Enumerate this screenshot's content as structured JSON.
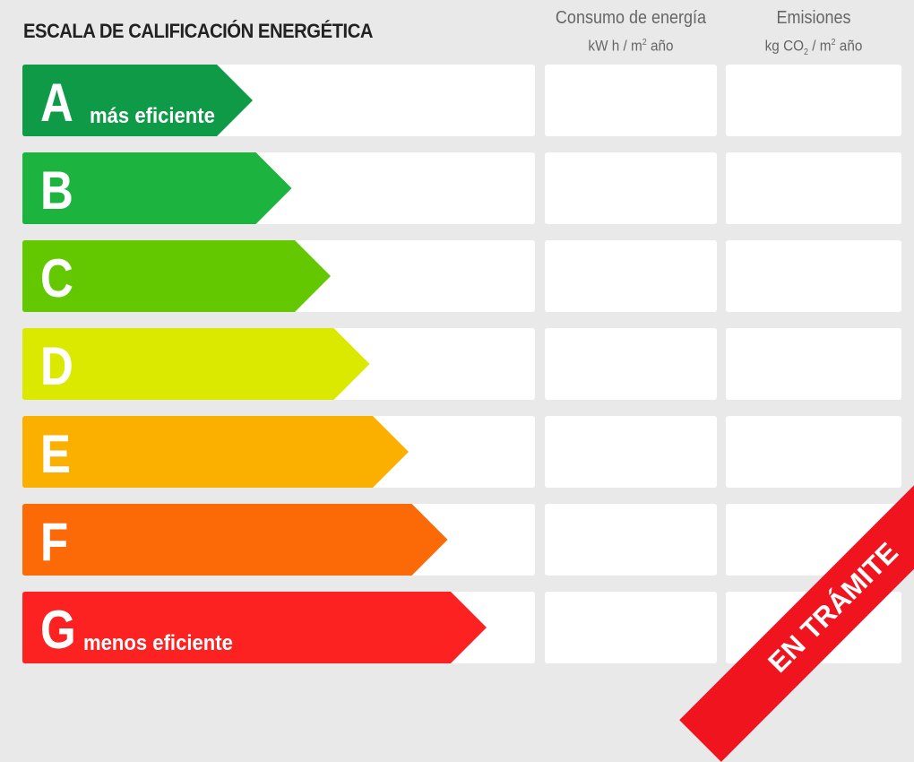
{
  "title": "ESCALA DE CALIFICACIÓN ENERGÉTICA",
  "columns": [
    {
      "label": "Consumo de energía",
      "unit_pre": "kW h / m",
      "unit_sup": "2",
      "unit_post": " año"
    },
    {
      "label": "Emisiones",
      "unit_pre": "kg CO",
      "unit_sub": "2",
      "unit_mid": " / m",
      "unit_sup": "2",
      "unit_post": " año"
    }
  ],
  "ratings": [
    {
      "letter": "A",
      "caption": "más eficiente",
      "color": "#0f9a48"
    },
    {
      "letter": "B",
      "color": "#1db33f"
    },
    {
      "letter": "C",
      "color": "#63c800"
    },
    {
      "letter": "D",
      "color": "#dbe800"
    },
    {
      "letter": "E",
      "color": "#fbb000"
    },
    {
      "letter": "F",
      "color": "#fc6a07"
    },
    {
      "letter": "G",
      "caption": "menos eficiente",
      "color": "#fc2222"
    }
  ],
  "banner": {
    "text": "EN TRÁMITE",
    "color": "#f0141e"
  }
}
